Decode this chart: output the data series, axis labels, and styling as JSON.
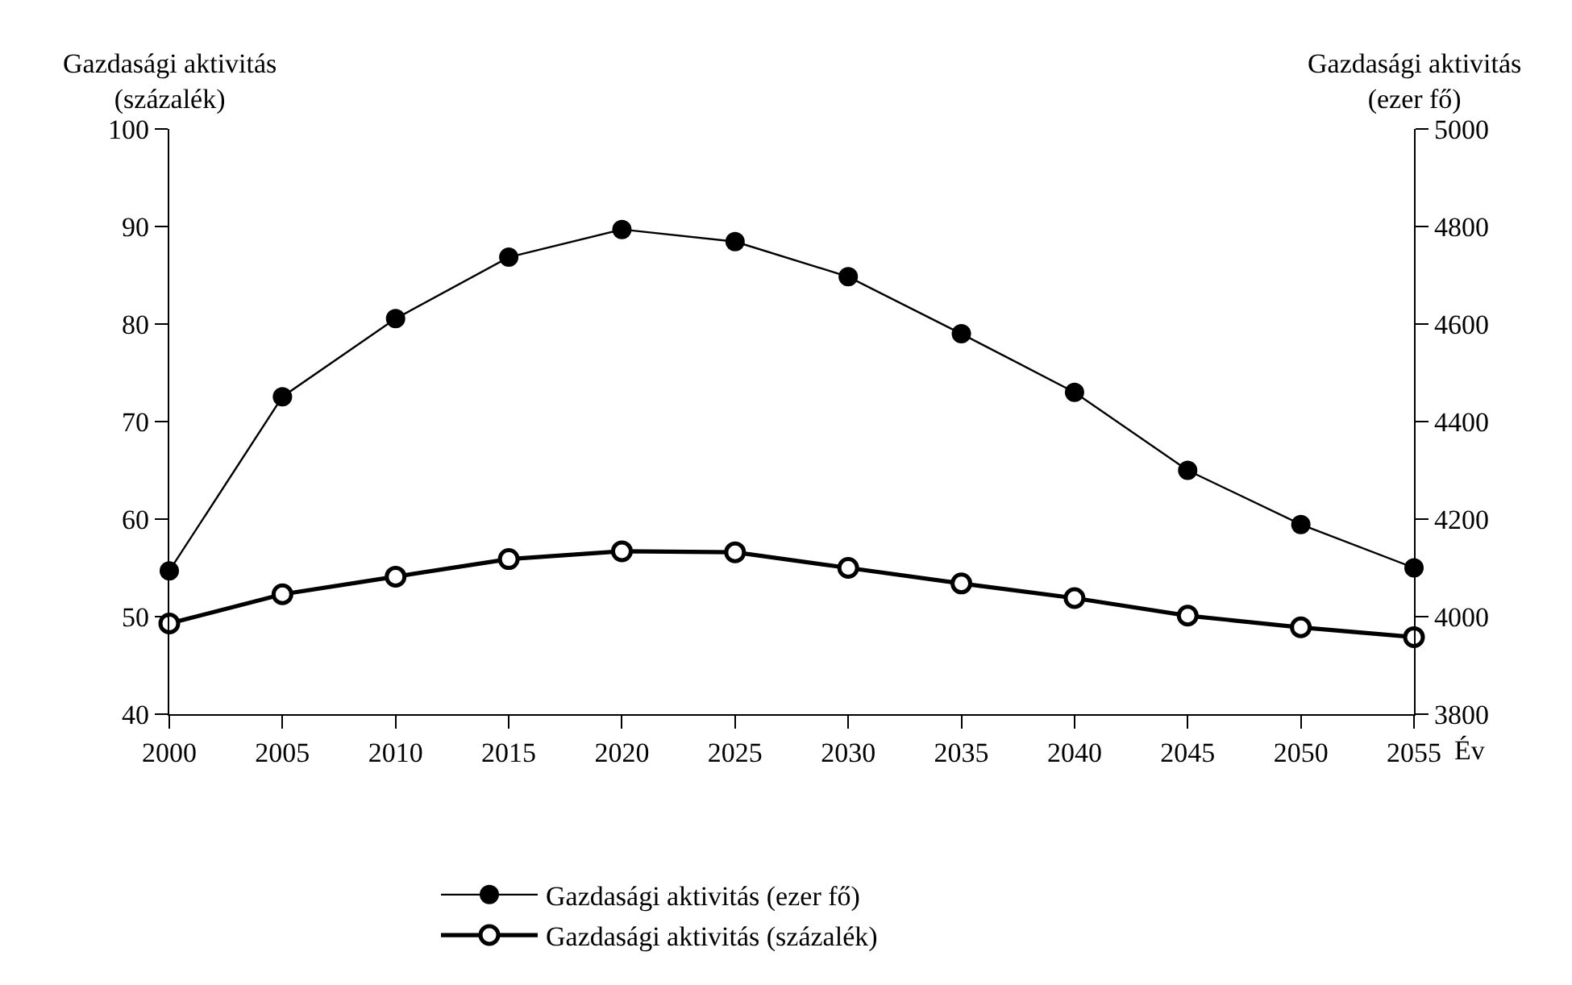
{
  "chart_data": {
    "type": "line",
    "ylabel": "Gazdasági aktivitás\n(százalék)",
    "y2label": "Gazdasági aktivitás\n(ezer fő)",
    "xlabel": "Év",
    "x": [
      2000,
      2005,
      2010,
      2015,
      2020,
      2025,
      2030,
      2035,
      2040,
      2045,
      2050,
      2055
    ],
    "xlim": [
      2000,
      2055
    ],
    "xticks": [
      2000,
      2005,
      2010,
      2015,
      2020,
      2025,
      2030,
      2035,
      2040,
      2045,
      2050,
      2055
    ],
    "ylim": [
      40,
      100
    ],
    "yticks": [
      40,
      50,
      60,
      70,
      80,
      90,
      100
    ],
    "y2lim": [
      3800,
      5000
    ],
    "y2ticks": [
      3800,
      4000,
      4200,
      4400,
      4600,
      4800,
      5000
    ],
    "legend": "bottom",
    "series": [
      {
        "name": "Gazdasági aktivitás (ezer fő)",
        "color": "#000000",
        "axis": "y2",
        "marker": "circle",
        "values": [
          4094,
          4451,
          4611,
          4737,
          4794,
          4769,
          4697,
          4580,
          4460,
          4300,
          4189,
          4100
        ]
      },
      {
        "name": "Gazdasági aktivitás (százalék)",
        "color": "#000000",
        "marker": "circle-open",
        "values": [
          49.3,
          52.3,
          54.1,
          55.9,
          56.7,
          56.6,
          55.0,
          53.4,
          51.9,
          50.1,
          48.9,
          47.9
        ]
      }
    ]
  }
}
